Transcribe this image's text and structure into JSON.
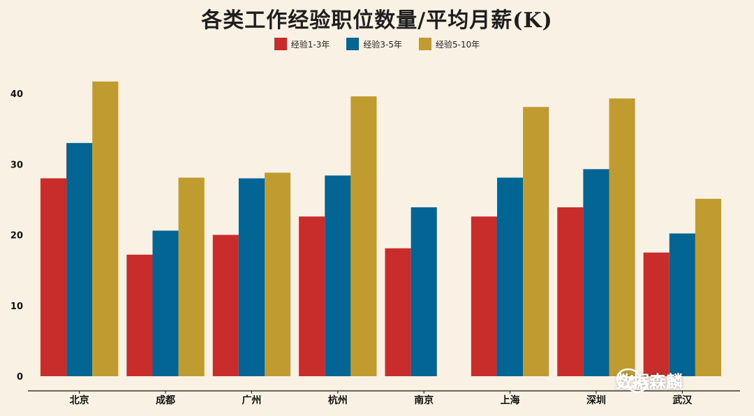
{
  "chart_data": {
    "type": "bar",
    "title": "各类工作经验职位数量/平均月薪(K)",
    "categories": [
      "北京",
      "成都",
      "广州",
      "杭州",
      "南京",
      "上海",
      "深圳",
      "武汉"
    ],
    "series": [
      {
        "name": "经验1-3年",
        "color": "#c82d2b",
        "values": [
          28,
          17.2,
          20,
          22.6,
          18.1,
          22.6,
          23.9,
          17.5
        ]
      },
      {
        "name": "经验3-5年",
        "color": "#036594",
        "values": [
          33,
          20.6,
          28,
          28.4,
          23.9,
          28.1,
          29.3,
          20.2
        ]
      },
      {
        "name": "经验5-10年",
        "color": "#bf9b30",
        "values": [
          41.7,
          28.1,
          28.8,
          39.6,
          null,
          38.1,
          39.3,
          25.1
        ]
      }
    ],
    "yticks": [
      0,
      10,
      20,
      30,
      40
    ],
    "ylim": [
      0,
      45
    ],
    "xlabel": "",
    "ylabel": ""
  },
  "watermark": {
    "text": "数据森麟",
    "icon": "wechat-icon"
  }
}
